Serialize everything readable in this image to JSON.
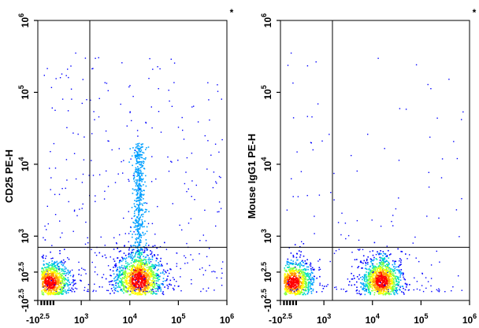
{
  "chart_data": [
    {
      "type": "scatter",
      "subtype": "flow-cytometry-density-dot-plot",
      "title": "",
      "ylabel": "CD25 PE-H",
      "xlabel": "",
      "corner_mark": "*",
      "axis_scale": "biexponential (log with linear region near zero)",
      "xlim": [
        -316,
        1000000
      ],
      "ylim": [
        -316,
        1000000
      ],
      "x_tick_labels": [
        {
          "base": "-10",
          "exp": "2.5"
        },
        {
          "base": "10",
          "exp": "3"
        },
        {
          "base": "10",
          "exp": "4"
        },
        {
          "base": "10",
          "exp": "5"
        },
        {
          "base": "10",
          "exp": "6"
        }
      ],
      "y_tick_labels": [
        {
          "base": "-10",
          "exp": "2.5"
        },
        {
          "base": "10",
          "exp": "2.5"
        },
        {
          "base": "10",
          "exp": "3"
        },
        {
          "base": "10",
          "exp": "4"
        },
        {
          "base": "10",
          "exp": "5"
        },
        {
          "base": "10",
          "exp": "6"
        }
      ],
      "quadrant_gate": {
        "x": 1500,
        "y": 700
      },
      "grid": false,
      "populations": [
        {
          "name": "negative",
          "center": {
            "x": 80,
            "y": 100
          },
          "relative_size": 1.0
        },
        {
          "name": "positive",
          "center": {
            "x": 15000,
            "y": 140
          },
          "relative_size": 1.2,
          "tail_up_to_y": 20000
        }
      ],
      "color_scale": [
        "#0000ff",
        "#00a0ff",
        "#00e0c0",
        "#80ff40",
        "#ffff00",
        "#ff9900",
        "#ff0000"
      ]
    },
    {
      "type": "scatter",
      "subtype": "flow-cytometry-density-dot-plot",
      "title": "",
      "ylabel": "Mouse IgG1 PE-H",
      "xlabel": "",
      "corner_mark": "*",
      "axis_scale": "biexponential (log with linear region near zero)",
      "xlim": [
        -316,
        1000000
      ],
      "ylim": [
        -316,
        1000000
      ],
      "x_tick_labels": [
        {
          "base": "-10",
          "exp": "2.5"
        },
        {
          "base": "10",
          "exp": "3"
        },
        {
          "base": "10",
          "exp": "4"
        },
        {
          "base": "10",
          "exp": "5"
        },
        {
          "base": "10",
          "exp": "6"
        }
      ],
      "y_tick_labels": [
        {
          "base": "-10",
          "exp": "2.5"
        },
        {
          "base": "10",
          "exp": "2.5"
        },
        {
          "base": "10",
          "exp": "3"
        },
        {
          "base": "10",
          "exp": "4"
        },
        {
          "base": "10",
          "exp": "5"
        },
        {
          "base": "10",
          "exp": "6"
        }
      ],
      "quadrant_gate": {
        "x": 1500,
        "y": 700
      },
      "grid": false,
      "populations": [
        {
          "name": "negative",
          "center": {
            "x": 80,
            "y": 100
          },
          "relative_size": 1.0
        },
        {
          "name": "positive",
          "center": {
            "x": 15000,
            "y": 120
          },
          "relative_size": 1.0,
          "tail_up_to_y": 600
        }
      ],
      "color_scale": [
        "#0000ff",
        "#00a0ff",
        "#00e0c0",
        "#80ff40",
        "#ffff00",
        "#ff9900",
        "#ff0000"
      ]
    }
  ]
}
